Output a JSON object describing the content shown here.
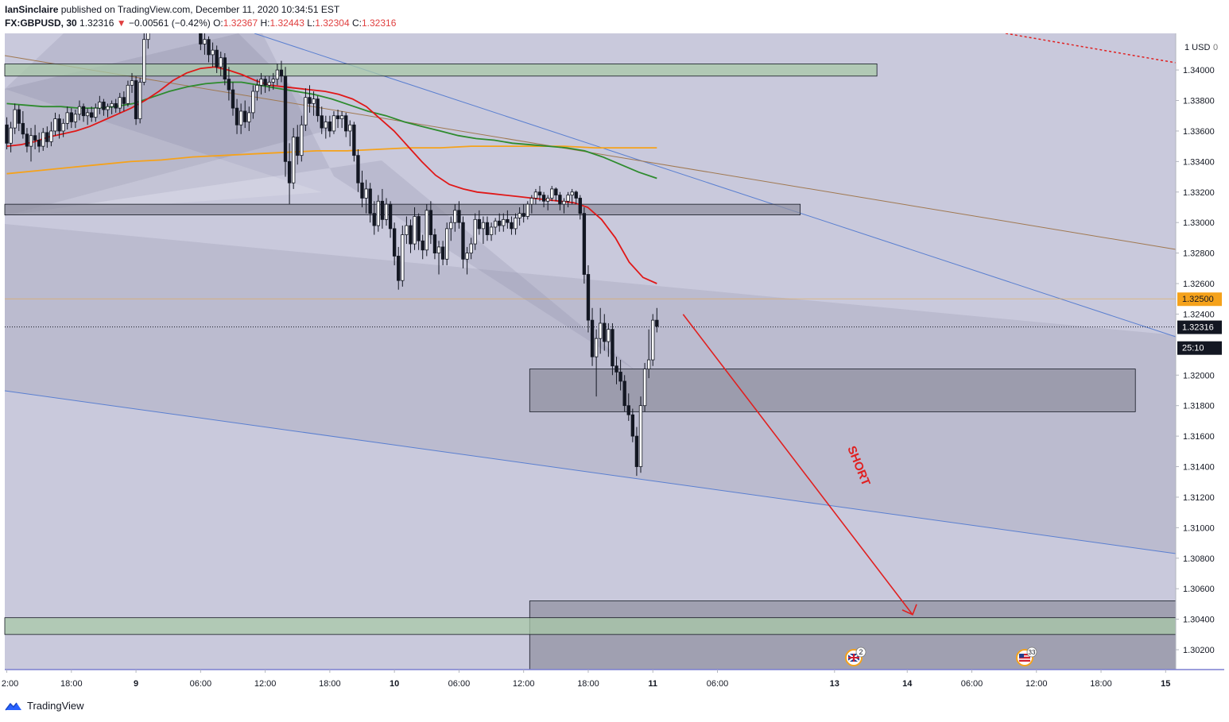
{
  "header": {
    "author": "IanSinclaire",
    "published_text": "published on TradingView.com, December 11, 2020 10:34:51 EST",
    "symbol": "FX:GBPUSD, 30",
    "last": "1.32316",
    "change_arrow": "▼",
    "change": "−0.00561 (−0.42%)",
    "o_label": "O:",
    "o": "1.32367",
    "h_label": "H:",
    "h": "1.32443",
    "l_label": "L:",
    "l": "1.32304",
    "c_label": "C:",
    "c": "1.32316"
  },
  "footer": {
    "brand": "TradingView"
  },
  "colors": {
    "bg": "#ffffff",
    "plot_bg": "#c9c9dc",
    "ema_red": "#e01818",
    "ema_green": "#2e8b2e",
    "ema_orange": "#f5a21b",
    "arrow": "#e02020",
    "up_candle": "#ffffff",
    "down_candle": "#131722",
    "zone_green": "#a8c8a8",
    "zone_gray": "#8e8e9e",
    "channel_line": "#5a7fd0"
  },
  "chart_data": {
    "type": "candlestick",
    "symbol": "GBPUSD",
    "timeframe": "30",
    "currency_label": "1 USD",
    "currency_value": "0",
    "ylim": [
      1.3007,
      1.3424
    ],
    "price_ticks": [
      "1.34000",
      "1.33800",
      "1.33600",
      "1.33400",
      "1.33200",
      "1.33000",
      "1.32800",
      "1.32600",
      "1.32400",
      "1.32000",
      "1.31800",
      "1.31600",
      "1.31400",
      "1.31200",
      "1.31000",
      "1.30800",
      "1.30600",
      "1.30400",
      "1.30200"
    ],
    "price_tags": [
      {
        "value": 1.325,
        "label": "1.32500",
        "style": "orange"
      },
      {
        "value": 1.32316,
        "label": "1.32316",
        "style": "dark"
      },
      {
        "value": 1.3218,
        "label": "25:10",
        "style": "dark"
      }
    ],
    "partial_tick_char": "1",
    "time_ticks": [
      {
        "label": "2:00",
        "bar": 0
      },
      {
        "label": "18:00",
        "bar": 16
      },
      {
        "label": "9",
        "bar": 32
      },
      {
        "label": "06:00",
        "bar": 48
      },
      {
        "label": "12:00",
        "bar": 64
      },
      {
        "label": "18:00",
        "bar": 80
      },
      {
        "label": "10",
        "bar": 96
      },
      {
        "label": "06:00",
        "bar": 112
      },
      {
        "label": "12:00",
        "bar": 128
      },
      {
        "label": "18:00",
        "bar": 144
      },
      {
        "label": "11",
        "bar": 160
      },
      {
        "label": "06:00",
        "bar": 176
      },
      {
        "label": "13",
        "bar": 205
      },
      {
        "label": "14",
        "bar": 223
      },
      {
        "label": "06:00",
        "bar": 239
      },
      {
        "label": "12:00",
        "bar": 255
      },
      {
        "label": "18:00",
        "bar": 271
      },
      {
        "label": "15",
        "bar": 287
      }
    ],
    "bar_count_total": 290,
    "candles": [
      [
        1.3364,
        1.3369,
        1.3348,
        1.3352
      ],
      [
        1.3352,
        1.3366,
        1.3346,
        1.3362
      ],
      [
        1.3362,
        1.3378,
        1.3358,
        1.3374
      ],
      [
        1.3374,
        1.3377,
        1.336,
        1.3365
      ],
      [
        1.3365,
        1.3373,
        1.3355,
        1.3358
      ],
      [
        1.3358,
        1.3362,
        1.3346,
        1.335
      ],
      [
        1.335,
        1.3362,
        1.334,
        1.3357
      ],
      [
        1.3357,
        1.3364,
        1.3348,
        1.3354
      ],
      [
        1.3354,
        1.3359,
        1.3346,
        1.335
      ],
      [
        1.335,
        1.3362,
        1.3347,
        1.3359
      ],
      [
        1.3359,
        1.3363,
        1.3349,
        1.3353
      ],
      [
        1.3353,
        1.3366,
        1.335,
        1.336
      ],
      [
        1.336,
        1.3372,
        1.3357,
        1.3368
      ],
      [
        1.3368,
        1.3371,
        1.3355,
        1.336
      ],
      [
        1.336,
        1.3368,
        1.3356,
        1.3365
      ],
      [
        1.3365,
        1.3376,
        1.3361,
        1.3372
      ],
      [
        1.3372,
        1.3375,
        1.3362,
        1.3366
      ],
      [
        1.3366,
        1.3374,
        1.3362,
        1.3371
      ],
      [
        1.3371,
        1.338,
        1.3367,
        1.3376
      ],
      [
        1.3376,
        1.3378,
        1.3366,
        1.337
      ],
      [
        1.337,
        1.3375,
        1.3364,
        1.3372
      ],
      [
        1.3372,
        1.3376,
        1.3366,
        1.3369
      ],
      [
        1.3369,
        1.3378,
        1.3366,
        1.3375
      ],
      [
        1.3375,
        1.3383,
        1.3371,
        1.3379
      ],
      [
        1.3379,
        1.3381,
        1.337,
        1.3374
      ],
      [
        1.3374,
        1.3378,
        1.3369,
        1.3376
      ],
      [
        1.3376,
        1.338,
        1.3371,
        1.3378
      ],
      [
        1.3378,
        1.3381,
        1.3372,
        1.3375
      ],
      [
        1.3375,
        1.3385,
        1.3372,
        1.3382
      ],
      [
        1.3382,
        1.3386,
        1.3373,
        1.3378
      ],
      [
        1.3378,
        1.3393,
        1.3376,
        1.339
      ],
      [
        1.339,
        1.3398,
        1.3385,
        1.3393
      ],
      [
        1.3393,
        1.3396,
        1.3364,
        1.3368
      ],
      [
        1.3368,
        1.3395,
        1.3365,
        1.3392
      ],
      [
        1.3392,
        1.3425,
        1.339,
        1.342
      ],
      [
        1.342,
        1.3432,
        1.3414,
        1.3428
      ],
      [
        1.3428,
        1.344,
        1.3424,
        1.3436
      ],
      [
        1.3436,
        1.3446,
        1.343,
        1.344
      ],
      [
        1.344,
        1.345,
        1.3436,
        1.3446
      ],
      [
        1.3446,
        1.3448,
        1.3436,
        1.344
      ],
      [
        1.344,
        1.3452,
        1.3436,
        1.3448
      ],
      [
        1.3448,
        1.3455,
        1.344,
        1.3444
      ],
      [
        1.3444,
        1.345,
        1.3438,
        1.3446
      ],
      [
        1.3446,
        1.3448,
        1.3438,
        1.3441
      ],
      [
        1.3441,
        1.3447,
        1.3435,
        1.3443
      ],
      [
        1.3443,
        1.3446,
        1.3436,
        1.344
      ],
      [
        1.344,
        1.3444,
        1.343,
        1.3434
      ],
      [
        1.3434,
        1.3438,
        1.3424,
        1.3427
      ],
      [
        1.3427,
        1.343,
        1.3413,
        1.3417
      ],
      [
        1.3417,
        1.3424,
        1.341,
        1.342
      ],
      [
        1.342,
        1.3422,
        1.3405,
        1.341
      ],
      [
        1.341,
        1.3418,
        1.3402,
        1.3413
      ],
      [
        1.3413,
        1.3416,
        1.3398,
        1.3402
      ],
      [
        1.3402,
        1.3412,
        1.3396,
        1.3408
      ],
      [
        1.3408,
        1.3411,
        1.339,
        1.3394
      ],
      [
        1.3394,
        1.3402,
        1.338,
        1.3387
      ],
      [
        1.3387,
        1.3392,
        1.337,
        1.3375
      ],
      [
        1.3375,
        1.3381,
        1.3358,
        1.3364
      ],
      [
        1.3364,
        1.3378,
        1.3358,
        1.3373
      ],
      [
        1.3373,
        1.338,
        1.3362,
        1.3366
      ],
      [
        1.3366,
        1.3376,
        1.336,
        1.3372
      ],
      [
        1.3372,
        1.339,
        1.3368,
        1.3386
      ],
      [
        1.3386,
        1.3394,
        1.338,
        1.339
      ],
      [
        1.339,
        1.3398,
        1.3384,
        1.3394
      ],
      [
        1.3394,
        1.3396,
        1.3385,
        1.339
      ],
      [
        1.339,
        1.3396,
        1.3386,
        1.3392
      ],
      [
        1.3392,
        1.3398,
        1.3387,
        1.3394
      ],
      [
        1.3394,
        1.3404,
        1.339,
        1.34
      ],
      [
        1.34,
        1.3406,
        1.3392,
        1.3396
      ],
      [
        1.3396,
        1.3402,
        1.333,
        1.334
      ],
      [
        1.334,
        1.3352,
        1.3312,
        1.3326
      ],
      [
        1.3326,
        1.3362,
        1.3322,
        1.3356
      ],
      [
        1.3356,
        1.3364,
        1.3338,
        1.3344
      ],
      [
        1.3344,
        1.337,
        1.334,
        1.3364
      ],
      [
        1.3364,
        1.3388,
        1.336,
        1.3382
      ],
      [
        1.3382,
        1.339,
        1.3372,
        1.3378
      ],
      [
        1.3378,
        1.3386,
        1.337,
        1.3381
      ],
      [
        1.3381,
        1.3383,
        1.3366,
        1.337
      ],
      [
        1.337,
        1.3376,
        1.3358,
        1.3362
      ],
      [
        1.3362,
        1.337,
        1.3355,
        1.3366
      ],
      [
        1.3366,
        1.337,
        1.3356,
        1.336
      ],
      [
        1.336,
        1.3373,
        1.3358,
        1.337
      ],
      [
        1.337,
        1.3374,
        1.3362,
        1.3368
      ],
      [
        1.3368,
        1.3373,
        1.3362,
        1.337
      ],
      [
        1.337,
        1.3372,
        1.3356,
        1.336
      ],
      [
        1.336,
        1.3367,
        1.335,
        1.3364
      ],
      [
        1.3364,
        1.3366,
        1.334,
        1.3344
      ],
      [
        1.3344,
        1.3348,
        1.332,
        1.3326
      ],
      [
        1.3326,
        1.3334,
        1.331,
        1.3316
      ],
      [
        1.3316,
        1.3328,
        1.3306,
        1.3322
      ],
      [
        1.3322,
        1.3326,
        1.33,
        1.3306
      ],
      [
        1.3306,
        1.3314,
        1.3292,
        1.3298
      ],
      [
        1.3298,
        1.3318,
        1.3294,
        1.3314
      ],
      [
        1.3314,
        1.3322,
        1.3296,
        1.3302
      ],
      [
        1.3302,
        1.3316,
        1.3298,
        1.3312
      ],
      [
        1.3312,
        1.3314,
        1.329,
        1.3296
      ],
      [
        1.3296,
        1.33,
        1.3272,
        1.3278
      ],
      [
        1.3278,
        1.3284,
        1.3256,
        1.3262
      ],
      [
        1.3262,
        1.3298,
        1.3258,
        1.3292
      ],
      [
        1.3292,
        1.3304,
        1.3286,
        1.3298
      ],
      [
        1.3298,
        1.3302,
        1.328,
        1.3286
      ],
      [
        1.3286,
        1.331,
        1.3282,
        1.3304
      ],
      [
        1.3304,
        1.3306,
        1.3282,
        1.3288
      ],
      [
        1.3288,
        1.3292,
        1.3276,
        1.3282
      ],
      [
        1.3282,
        1.3312,
        1.3278,
        1.3308
      ],
      [
        1.3308,
        1.3314,
        1.3286,
        1.3292
      ],
      [
        1.3292,
        1.3296,
        1.3276,
        1.328
      ],
      [
        1.328,
        1.3288,
        1.3266,
        1.3284
      ],
      [
        1.3284,
        1.3288,
        1.3272,
        1.3276
      ],
      [
        1.3276,
        1.33,
        1.3272,
        1.3296
      ],
      [
        1.3296,
        1.3304,
        1.3288,
        1.33
      ],
      [
        1.33,
        1.3312,
        1.3294,
        1.3308
      ],
      [
        1.3308,
        1.3314,
        1.3296,
        1.33
      ],
      [
        1.33,
        1.3304,
        1.327,
        1.3276
      ],
      [
        1.3276,
        1.3284,
        1.3266,
        1.328
      ],
      [
        1.328,
        1.329,
        1.3276,
        1.3286
      ],
      [
        1.3286,
        1.3306,
        1.3282,
        1.3302
      ],
      [
        1.3302,
        1.3308,
        1.3292,
        1.3296
      ],
      [
        1.3296,
        1.3304,
        1.3286,
        1.33
      ],
      [
        1.33,
        1.3304,
        1.3288,
        1.3292
      ],
      [
        1.3292,
        1.33,
        1.3288,
        1.3297
      ],
      [
        1.3297,
        1.3303,
        1.3292,
        1.3301
      ],
      [
        1.3301,
        1.3306,
        1.3294,
        1.3298
      ],
      [
        1.3298,
        1.3306,
        1.3294,
        1.3302
      ],
      [
        1.3302,
        1.3308,
        1.3296,
        1.33
      ],
      [
        1.33,
        1.3304,
        1.3292,
        1.3296
      ],
      [
        1.3296,
        1.3306,
        1.3292,
        1.3303
      ],
      [
        1.3303,
        1.331,
        1.3298,
        1.3306
      ],
      [
        1.3306,
        1.3312,
        1.33,
        1.3304
      ],
      [
        1.3304,
        1.3314,
        1.3302,
        1.3312
      ],
      [
        1.3312,
        1.3318,
        1.3306,
        1.3316
      ],
      [
        1.3316,
        1.3322,
        1.3312,
        1.332
      ],
      [
        1.332,
        1.3324,
        1.3314,
        1.3318
      ],
      [
        1.3318,
        1.332,
        1.331,
        1.3314
      ],
      [
        1.3314,
        1.3318,
        1.3308,
        1.3316
      ],
      [
        1.3316,
        1.3324,
        1.3314,
        1.3322
      ],
      [
        1.3322,
        1.3323,
        1.3314,
        1.3318
      ],
      [
        1.3318,
        1.332,
        1.3308,
        1.3312
      ],
      [
        1.3312,
        1.3316,
        1.3306,
        1.3314
      ],
      [
        1.3314,
        1.332,
        1.331,
        1.3318
      ],
      [
        1.3318,
        1.3322,
        1.3312,
        1.332
      ],
      [
        1.332,
        1.3321,
        1.3312,
        1.3316
      ],
      [
        1.3316,
        1.3318,
        1.3302,
        1.3306
      ],
      [
        1.3306,
        1.331,
        1.326,
        1.3266
      ],
      [
        1.3266,
        1.3272,
        1.3228,
        1.3236
      ],
      [
        1.3236,
        1.3244,
        1.3206,
        1.3212
      ],
      [
        1.3212,
        1.323,
        1.3186,
        1.3224
      ],
      [
        1.3224,
        1.3244,
        1.3214,
        1.3234
      ],
      [
        1.3234,
        1.324,
        1.3216,
        1.3222
      ],
      [
        1.3222,
        1.3234,
        1.3212,
        1.323
      ],
      [
        1.323,
        1.3234,
        1.32,
        1.3206
      ],
      [
        1.3206,
        1.3212,
        1.3194,
        1.3202
      ],
      [
        1.3202,
        1.321,
        1.319,
        1.3196
      ],
      [
        1.3196,
        1.32,
        1.3176,
        1.318
      ],
      [
        1.318,
        1.3188,
        1.317,
        1.3174
      ],
      [
        1.3174,
        1.3178,
        1.3156,
        1.316
      ],
      [
        1.316,
        1.3166,
        1.3134,
        1.314
      ],
      [
        1.314,
        1.3186,
        1.3136,
        1.318
      ],
      [
        1.318,
        1.3208,
        1.3176,
        1.3204
      ],
      [
        1.3204,
        1.323,
        1.3198,
        1.321
      ],
      [
        1.321,
        1.324,
        1.3206,
        1.3236
      ],
      [
        1.3236,
        1.3244,
        1.3228,
        1.3232
      ]
    ],
    "ema_red": [
      1.335,
      1.3351,
      1.3353,
      1.3356,
      1.3358,
      1.336,
      1.3363,
      1.3367,
      1.3371,
      1.3375,
      1.338,
      1.3386,
      1.3393,
      1.3398,
      1.3401,
      1.3402,
      1.34,
      1.3397,
      1.3393,
      1.339,
      1.3389,
      1.3388,
      1.3387,
      1.3386,
      1.3384,
      1.3381,
      1.3376,
      1.3368,
      1.336,
      1.335,
      1.334,
      1.3331,
      1.3325,
      1.3322,
      1.332,
      1.3319,
      1.3318,
      1.3317,
      1.3316,
      1.3315,
      1.3314,
      1.3313,
      1.331,
      1.3302,
      1.329,
      1.3274,
      1.3264,
      1.326
    ],
    "ema_green": [
      1.3378,
      1.3377,
      1.3376,
      1.3376,
      1.3375,
      1.3375,
      1.3376,
      1.3378,
      1.3382,
      1.3386,
      1.3389,
      1.3391,
      1.3392,
      1.3392,
      1.339,
      1.3388,
      1.3386,
      1.3384,
      1.3381,
      1.3377,
      1.3373,
      1.337,
      1.3366,
      1.3363,
      1.336,
      1.3357,
      1.3355,
      1.3354,
      1.3352,
      1.3351,
      1.335,
      1.3349,
      1.3347,
      1.3343,
      1.3338,
      1.3333,
      1.3329
    ],
    "ema_orange": [
      1.3332,
      1.3334,
      1.3336,
      1.3338,
      1.334,
      1.3341,
      1.3343,
      1.3344,
      1.3345,
      1.3346,
      1.3347,
      1.3347,
      1.3348,
      1.3349,
      1.3349,
      1.335,
      1.335,
      1.335,
      1.335,
      1.3349,
      1.3349,
      1.3349
    ],
    "zones": [
      {
        "kind": "green",
        "from_bar": 0,
        "to_bar": 216,
        "top": 1.3404,
        "bottom": 1.3396
      },
      {
        "kind": "gray",
        "from_bar": 0,
        "to_bar": 197,
        "top": 1.3312,
        "bottom": 1.3305
      },
      {
        "kind": "gray",
        "from_bar": 130,
        "to_bar": 280,
        "top": 1.3204,
        "bottom": 1.3176
      },
      {
        "kind": "gray",
        "from_bar": 130,
        "to_bar": 290,
        "top": 1.3052,
        "bottom": 1.3007
      },
      {
        "kind": "green",
        "from_bar": 0,
        "to_bar": 290,
        "top": 1.3041,
        "bottom": 1.303
      }
    ],
    "annotation": {
      "text": "SHORT",
      "from_price": 1.3244,
      "to_price": 1.3043
    }
  }
}
